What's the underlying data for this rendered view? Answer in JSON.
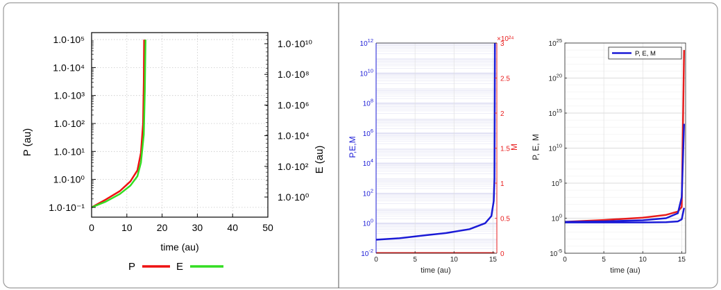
{
  "chart_data": [
    {
      "type": "line",
      "xlabel": "time (au)",
      "ylabel": "P (au)",
      "y2label": "E (au)",
      "xlim": [
        0,
        50
      ],
      "x_ticks": [
        "0",
        "10",
        "20",
        "30",
        "40",
        "50"
      ],
      "y_scale": "log",
      "y_ticks": [
        "1.0·10⁻¹",
        "1.0·10⁰",
        "1.0·10¹",
        "1.0·10²",
        "1.0·10³",
        "1.0·10⁴",
        "1.0·10⁵"
      ],
      "y2_ticks": [
        "1.0·10⁰",
        "1.0·10²",
        "1.0·10⁴",
        "1.0·10⁶",
        "1.0·10⁸",
        "1.0·10¹⁰"
      ],
      "grid": true,
      "legend_position": "bottom",
      "series": [
        {
          "name": "P",
          "color": "#ee1111",
          "x": [
            0,
            4,
            8,
            11,
            13,
            14,
            14.6,
            14.8,
            14.9
          ],
          "y": [
            0.1,
            0.19,
            0.38,
            0.85,
            2.1,
            9,
            100,
            3000,
            100000
          ]
        },
        {
          "name": "E",
          "color": "#33dd22",
          "x": [
            0,
            4,
            8,
            11,
            13,
            14,
            14.8,
            15.1,
            15.3
          ],
          "y": [
            0.1,
            0.16,
            0.3,
            0.6,
            1.3,
            4,
            40,
            1500,
            100000
          ]
        }
      ]
    },
    {
      "type": "line",
      "xlabel": "time (au)",
      "ylabel": "P,E,M",
      "y2label": "M",
      "y2_exponent": "×10²⁴",
      "xlim": [
        0,
        15.5
      ],
      "x_ticks": [
        "0",
        "5",
        "10",
        "15"
      ],
      "y_scale": "log",
      "y_ticks": [
        [
          "10",
          "-2"
        ],
        [
          "10",
          "0"
        ],
        [
          "10",
          "2"
        ],
        [
          "10",
          "4"
        ],
        [
          "10",
          "6"
        ],
        [
          "10",
          "8"
        ],
        [
          "10",
          "10"
        ],
        [
          "10",
          "12"
        ]
      ],
      "y2_ticks": [
        "0",
        "0.5",
        "1",
        "1.5",
        "2",
        "2.5",
        "3"
      ],
      "grid": true,
      "series": [
        {
          "name": "P,E,M",
          "color": "#1a1ad6",
          "x": [
            0,
            3,
            6,
            9,
            12,
            14,
            14.8,
            15.1,
            15.2,
            15.25
          ],
          "y": [
            0.08,
            0.1,
            0.15,
            0.22,
            0.4,
            1.0,
            3,
            30,
            1000,
            1000000000000
          ]
        },
        {
          "name": "M",
          "color": "#e81c1c",
          "x": [
            0,
            15.2
          ],
          "y2": [
            0,
            0
          ]
        }
      ]
    },
    {
      "type": "line",
      "xlabel": "time (au)",
      "ylabel": "P, E, M",
      "xlim": [
        0,
        15.5
      ],
      "x_ticks": [
        "0",
        "5",
        "10",
        "15"
      ],
      "y_scale": "log",
      "y_ticks": [
        [
          "10",
          "-5"
        ],
        [
          "10",
          "0"
        ],
        [
          "10",
          "5"
        ],
        [
          "10",
          "10"
        ],
        [
          "10",
          "15"
        ],
        [
          "10",
          "20"
        ],
        [
          "10",
          "25"
        ]
      ],
      "grid": true,
      "legend_position": "top-right",
      "legend": [
        "P, E, M"
      ],
      "series": [
        {
          "name": "P, E, M",
          "color": "#1a1ad6",
          "x": [
            0,
            5,
            10,
            13,
            14.5,
            15,
            15.3
          ],
          "y": [
            0.3,
            0.35,
            0.5,
            1.0,
            5,
            1000,
            30000000000000
          ]
        },
        {
          "color": "#1a1ad6",
          "x": [
            0,
            5,
            10,
            13,
            14.5,
            15,
            15.3
          ],
          "y": [
            0.25,
            0.25,
            0.25,
            0.27,
            0.35,
            0.7,
            30
          ]
        },
        {
          "color": "#e81c1c",
          "x": [
            0,
            5,
            10,
            13,
            14.5,
            15,
            15.3
          ],
          "y": [
            0.3,
            0.55,
            1.2,
            3,
            9,
            40,
            1e+24
          ]
        }
      ]
    }
  ]
}
